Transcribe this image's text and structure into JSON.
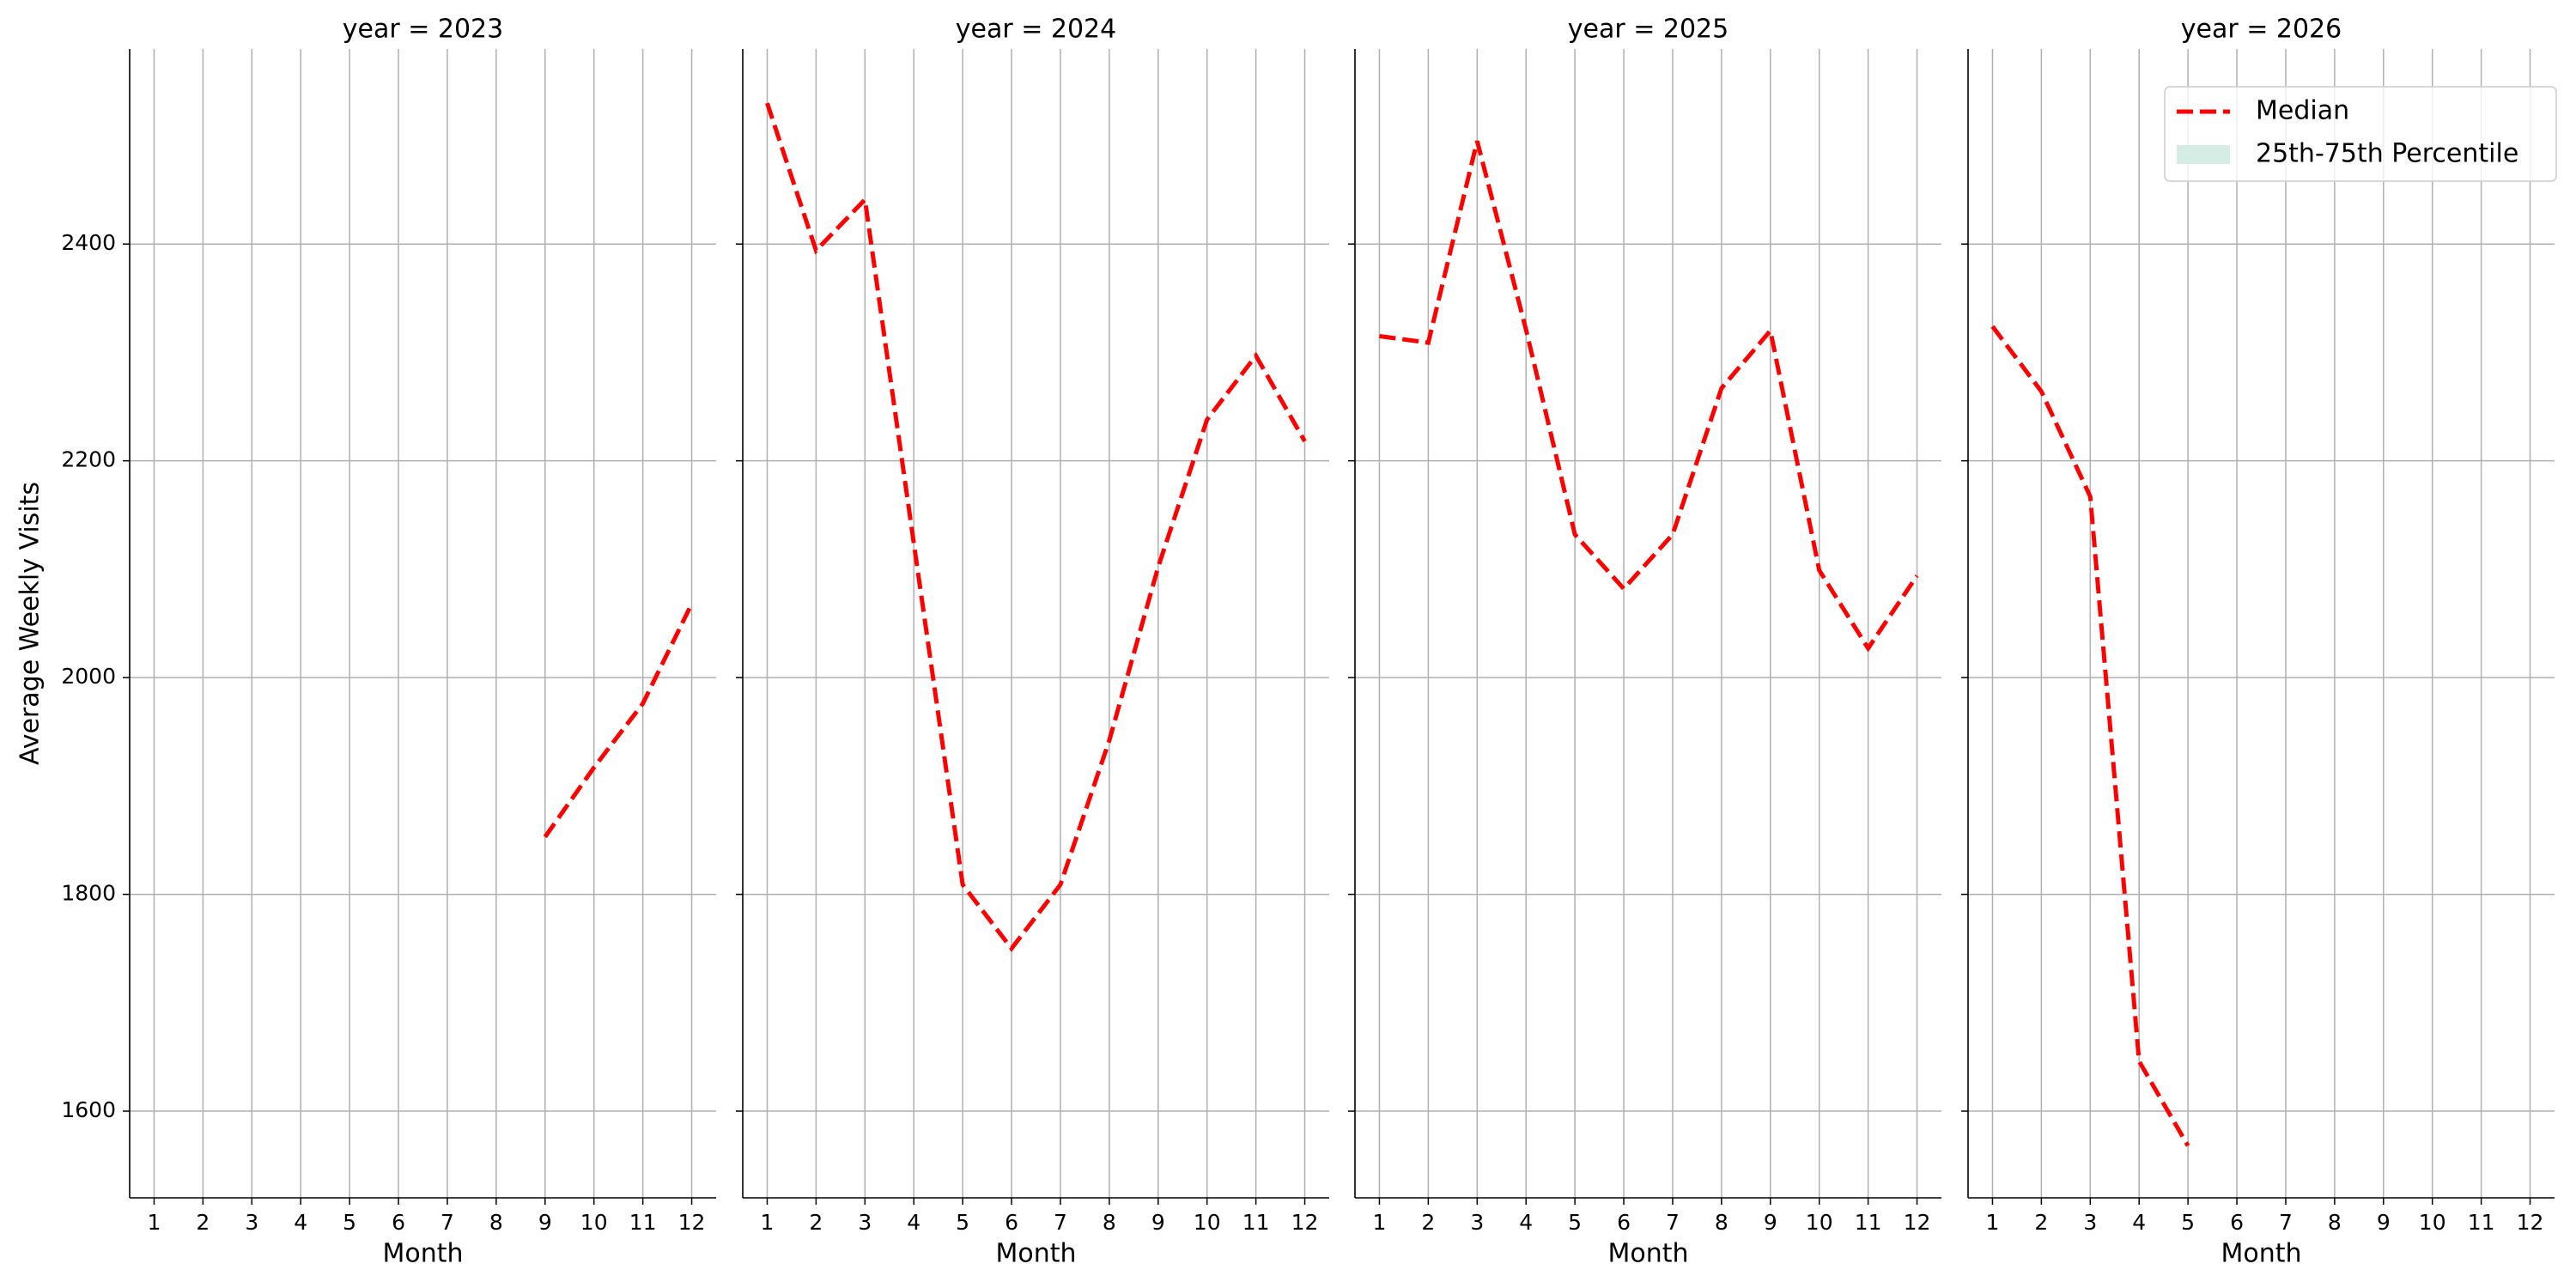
{
  "chart_data": [
    {
      "type": "line",
      "title": "year = 2023",
      "xlabel": "Month",
      "ylabel": "Average Weekly Visits",
      "x": [
        1,
        2,
        3,
        4,
        5,
        6,
        7,
        8,
        9,
        10,
        11,
        12
      ],
      "xlim": [
        0.5,
        12.5
      ],
      "xticks": [
        1,
        2,
        3,
        4,
        5,
        6,
        7,
        8,
        9,
        10,
        11,
        12
      ],
      "ylim": [
        1520,
        2580
      ],
      "yticks": [
        1600,
        1800,
        2000,
        2200,
        2400
      ],
      "grid": true,
      "series": [
        {
          "color": "#ff0000",
          "values": [
            null,
            null,
            null,
            null,
            null,
            null,
            null,
            null,
            1853,
            1917,
            1976,
            2068
          ]
        }
      ]
    },
    {
      "type": "line",
      "title": "year = 2024",
      "xlabel": "Month",
      "x": [
        1,
        2,
        3,
        4,
        5,
        6,
        7,
        8,
        9,
        10,
        11,
        12
      ],
      "xlim": [
        0.5,
        12.5
      ],
      "xticks": [
        1,
        2,
        3,
        4,
        5,
        6,
        7,
        8,
        9,
        10,
        11,
        12
      ],
      "ylim": [
        1520,
        2580
      ],
      "yticks": [
        1600,
        1800,
        2000,
        2200,
        2400
      ],
      "grid": true,
      "series": [
        {
          "color": "#ff0000",
          "values": [
            2530,
            2394,
            2441,
            2124,
            1809,
            1750,
            1809,
            1942,
            2102,
            2238,
            2297,
            2218
          ]
        }
      ]
    },
    {
      "type": "line",
      "title": "year = 2025",
      "xlabel": "Month",
      "x": [
        1,
        2,
        3,
        4,
        5,
        6,
        7,
        8,
        9,
        10,
        11,
        12
      ],
      "xlim": [
        0.5,
        12.5
      ],
      "xticks": [
        1,
        2,
        3,
        4,
        5,
        6,
        7,
        8,
        9,
        10,
        11,
        12
      ],
      "ylim": [
        1520,
        2580
      ],
      "yticks": [
        1600,
        1800,
        2000,
        2200,
        2400
      ],
      "grid": true,
      "series": [
        {
          "color": "#ff0000",
          "values": [
            2315,
            2309,
            2495,
            2321,
            2132,
            2082,
            2132,
            2267,
            2320,
            2099,
            2027,
            2094
          ]
        }
      ]
    },
    {
      "type": "line",
      "title": "year = 2026",
      "xlabel": "Month",
      "x": [
        1,
        2,
        3,
        4,
        5,
        6,
        7,
        8,
        9,
        10,
        11,
        12
      ],
      "xlim": [
        0.5,
        12.5
      ],
      "xticks": [
        1,
        2,
        3,
        4,
        5,
        6,
        7,
        8,
        9,
        10,
        11,
        12
      ],
      "ylim": [
        1520,
        2580
      ],
      "yticks": [
        1600,
        1800,
        2000,
        2200,
        2400
      ],
      "grid": true,
      "series": [
        {
          "color": "#ff0000",
          "values": [
            2324,
            2264,
            2167,
            1646,
            1568,
            null,
            null,
            null,
            null,
            null,
            null,
            null
          ]
        }
      ],
      "legend": [
        {
          "name": "Median",
          "color": "#ff0000",
          "style": "dashed"
        },
        {
          "name": "25th-75th Percentile",
          "color": "#d5ede4",
          "style": "patch"
        }
      ]
    }
  ]
}
